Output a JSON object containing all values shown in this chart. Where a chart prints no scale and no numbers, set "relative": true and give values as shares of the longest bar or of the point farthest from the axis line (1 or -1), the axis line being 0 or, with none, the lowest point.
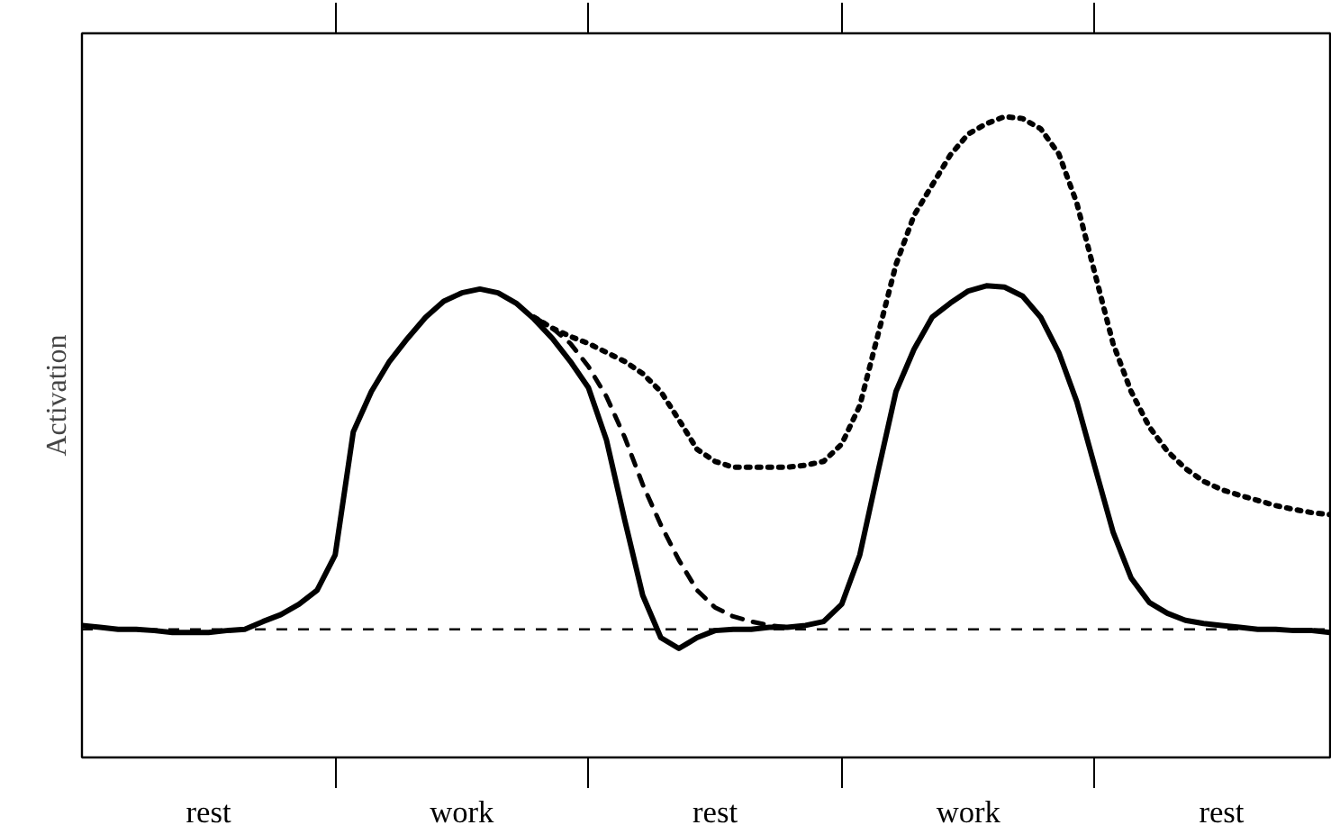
{
  "chart_data": {
    "type": "line",
    "ylabel": "Activation",
    "relative": true,
    "tick_labels": "x",
    "grid": false,
    "legend": false,
    "categories": [
      null,
      null,
      null,
      null,
      null,
      null,
      null,
      "rest",
      null,
      null,
      null,
      null,
      null,
      null,
      null,
      null,
      null,
      null,
      null,
      null,
      null,
      "work",
      null,
      null,
      null,
      null,
      null,
      null,
      null,
      null,
      null,
      null,
      null,
      null,
      null,
      "rest",
      null,
      null,
      null,
      null,
      null,
      null,
      null,
      null,
      null,
      null,
      null,
      null,
      null,
      "work",
      null,
      null,
      null,
      null,
      null,
      null,
      null,
      null,
      null,
      null,
      null,
      null,
      null,
      "rest",
      null,
      null,
      null,
      null,
      null,
      null
    ],
    "ref_lines": [
      {
        "axis": "y",
        "value": 0.2,
        "color": "#000000",
        "line_style": "dashed"
      }
    ],
    "series": [
      {
        "color": "#000000",
        "line_style": "solid",
        "values": [
          0.206,
          0.203,
          0.2,
          0.2,
          0.198,
          0.195,
          0.195,
          0.195,
          0.198,
          0.2,
          0.212,
          0.223,
          0.239,
          0.261,
          0.316,
          0.508,
          0.571,
          0.618,
          0.654,
          0.687,
          0.712,
          0.725,
          0.731,
          0.725,
          0.709,
          0.684,
          0.654,
          0.618,
          0.577,
          0.495,
          0.371,
          0.253,
          0.187,
          0.17,
          0.187,
          0.198,
          0.2,
          0.2,
          0.203,
          0.203,
          0.206,
          0.212,
          0.239,
          0.316,
          0.445,
          0.571,
          0.637,
          0.687,
          0.709,
          0.728,
          0.736,
          0.734,
          0.72,
          0.687,
          0.632,
          0.555,
          0.453,
          0.352,
          0.28,
          0.242,
          0.225,
          0.214,
          0.209,
          0.206,
          0.203,
          0.2,
          0.2,
          0.198,
          0.198,
          0.195
        ]
      },
      {
        "color": "#000000",
        "line_style": "dashed",
        "values": [
          null,
          null,
          null,
          null,
          null,
          null,
          null,
          null,
          null,
          null,
          null,
          null,
          null,
          null,
          null,
          null,
          null,
          null,
          null,
          null,
          null,
          null,
          null,
          null,
          null,
          0.687,
          0.67,
          0.646,
          0.61,
          0.563,
          0.5,
          0.426,
          0.363,
          0.308,
          0.261,
          0.234,
          0.22,
          0.212,
          0.206,
          0.203,
          null,
          null,
          null,
          null,
          null,
          null,
          null,
          null,
          null,
          null,
          null,
          null,
          null,
          null,
          null,
          null,
          null,
          null,
          null,
          null,
          null,
          null,
          null,
          null,
          null,
          null,
          null,
          null,
          null,
          null
        ]
      },
      {
        "color": "#000000",
        "line_style": "dotted",
        "values": [
          null,
          null,
          null,
          null,
          null,
          null,
          null,
          null,
          null,
          null,
          null,
          null,
          null,
          null,
          null,
          null,
          null,
          null,
          null,
          null,
          null,
          null,
          null,
          null,
          null,
          0.687,
          0.67,
          0.657,
          0.646,
          0.632,
          0.618,
          0.599,
          0.571,
          0.527,
          0.481,
          0.462,
          0.453,
          0.453,
          0.453,
          0.453,
          0.456,
          0.462,
          0.489,
          0.549,
          0.659,
          0.769,
          0.846,
          0.893,
          0.94,
          0.973,
          0.989,
          1.0,
          0.997,
          0.981,
          0.942,
          0.865,
          0.755,
          0.646,
          0.571,
          0.516,
          0.478,
          0.451,
          0.431,
          0.418,
          0.409,
          0.401,
          0.393,
          0.387,
          0.382,
          0.379
        ]
      }
    ]
  }
}
